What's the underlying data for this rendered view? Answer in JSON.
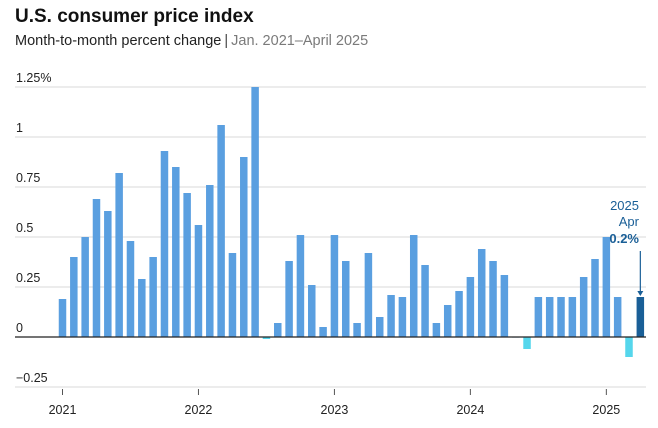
{
  "title": "U.S. consumer price index",
  "subtitle": {
    "label": "Month-to-month percent change",
    "separator": "|",
    "range": "Jan. 2021–April 2025"
  },
  "colors": {
    "positive": "#5a9fe0",
    "negative": "#55d6ec",
    "highlight": "#1a5f97",
    "grid": "#d8d8d8",
    "zero_line": "#222222"
  },
  "chart_data": {
    "type": "bar",
    "ylim": [
      -0.25,
      1.25
    ],
    "yticks": [
      {
        "value": 1.25,
        "label": "1.25%"
      },
      {
        "value": 1,
        "label": "1"
      },
      {
        "value": 0.75,
        "label": "0.75"
      },
      {
        "value": 0.5,
        "label": "0.5"
      },
      {
        "value": 0.25,
        "label": "0.25"
      },
      {
        "value": 0,
        "label": "0"
      },
      {
        "value": -0.25,
        "label": "−0.25"
      }
    ],
    "grid": true,
    "x_ticks": [
      {
        "index": 0,
        "label": "2021"
      },
      {
        "index": 12,
        "label": "2022"
      },
      {
        "index": 24,
        "label": "2023"
      },
      {
        "index": 36,
        "label": "2024"
      },
      {
        "index": 48,
        "label": "2025"
      }
    ],
    "values": [
      0.19,
      0.4,
      0.5,
      0.69,
      0.63,
      0.82,
      0.48,
      0.29,
      0.4,
      0.93,
      0.85,
      0.72,
      0.56,
      0.76,
      1.06,
      0.42,
      0.9,
      1.25,
      -0.01,
      0.07,
      0.38,
      0.51,
      0.26,
      0.05,
      0.51,
      0.38,
      0.07,
      0.42,
      0.1,
      0.21,
      0.2,
      0.51,
      0.36,
      0.07,
      0.16,
      0.23,
      0.3,
      0.44,
      0.38,
      0.31,
      0.0,
      -0.06,
      0.2,
      0.2,
      0.2,
      0.2,
      0.3,
      0.39,
      0.5,
      0.2,
      -0.1,
      0.2
    ],
    "highlight_index": 51,
    "annotation": {
      "year": "2025",
      "month": "Apr",
      "value_label": "0.2%"
    }
  }
}
